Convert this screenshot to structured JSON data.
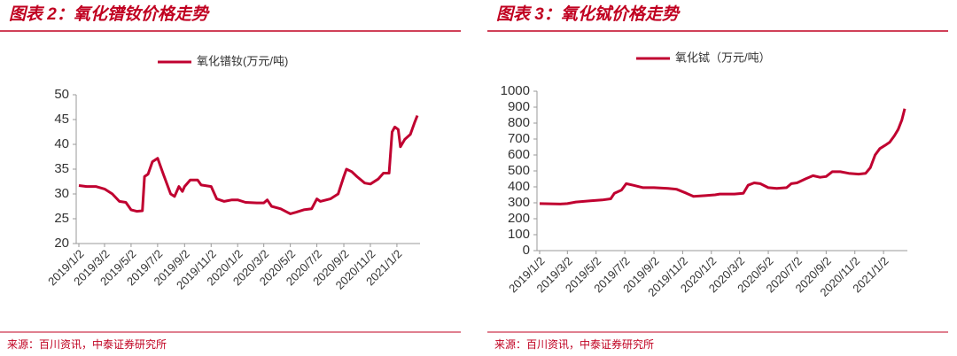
{
  "chart_data": [
    {
      "type": "line",
      "title": "图表 2：氧化镨钕价格走势",
      "source": "来源：百川资讯，中泰证券研究所",
      "legend": "top",
      "x": [
        "2019/1/2",
        "2019/1/20",
        "2019/2/10",
        "2019/3/2",
        "2019/3/20",
        "2019/4/5",
        "2019/4/20",
        "2019/5/2",
        "2019/5/15",
        "2019/5/28",
        "2019/6/2",
        "2019/6/10",
        "2019/6/20",
        "2019/7/2",
        "2019/7/15",
        "2019/8/1",
        "2019/8/10",
        "2019/8/20",
        "2019/8/28",
        "2019/9/2",
        "2019/9/15",
        "2019/10/2",
        "2019/10/10",
        "2019/11/2",
        "2019/11/15",
        "2019/12/2",
        "2019/12/20",
        "2020/1/2",
        "2020/1/20",
        "2020/2/15",
        "2020/3/2",
        "2020/3/10",
        "2020/3/20",
        "2020/4/10",
        "2020/4/25",
        "2020/5/2",
        "2020/5/15",
        "2020/6/2",
        "2020/6/20",
        "2020/7/2",
        "2020/7/10",
        "2020/8/2",
        "2020/8/20",
        "2020/9/2",
        "2020/9/8",
        "2020/9/20",
        "2020/10/2",
        "2020/10/20",
        "2020/11/2",
        "2020/11/20",
        "2020/12/2",
        "2020/12/15",
        "2020/12/22",
        "2020/12/28",
        "2021/1/5",
        "2021/1/10",
        "2021/1/20",
        "2021/2/2",
        "2021/2/12",
        "2021/2/18"
      ],
      "series": [
        {
          "name": "氧化镨钕(万元/吨)",
          "color": "#c00030",
          "values": [
            31.7,
            31.5,
            31.5,
            31.0,
            30,
            28.5,
            28.3,
            26.8,
            26.5,
            26.6,
            33.5,
            34,
            36.5,
            37.2,
            34,
            30,
            29.5,
            31.5,
            30.5,
            31.5,
            32.8,
            32.8,
            31.8,
            31.5,
            29,
            28.5,
            28.8,
            28.8,
            28.3,
            28.2,
            28.2,
            28.8,
            27.5,
            27,
            26.3,
            26,
            26.3,
            26.8,
            27,
            29,
            28.5,
            29,
            30,
            33.5,
            35,
            34.5,
            33.5,
            32.2,
            32,
            33,
            34.2,
            34.2,
            42.5,
            43.5,
            43,
            39.5,
            41,
            42,
            44.5,
            45.8
          ]
        }
      ],
      "ylim": [
        20,
        50
      ],
      "yticks": [
        20,
        25,
        30,
        35,
        40,
        45,
        50
      ],
      "xticks": [
        "2019/1/2",
        "2019/3/2",
        "2019/5/2",
        "2019/7/2",
        "2019/9/2",
        "2019/11/2",
        "2020/1/2",
        "2020/3/2",
        "2020/5/2",
        "2020/7/2",
        "2020/9/2",
        "2020/11/2",
        "2021/1/2"
      ]
    },
    {
      "type": "line",
      "title": "图表 3：氧化铽价格走势",
      "source": "来源：百川资讯，中泰证券研究所",
      "legend": "top",
      "x": [
        "2019/1/2",
        "2019/2/15",
        "2019/3/2",
        "2019/3/20",
        "2019/4/20",
        "2019/5/15",
        "2019/6/2",
        "2019/6/10",
        "2019/6/25",
        "2019/7/5",
        "2019/7/20",
        "2019/8/10",
        "2019/9/2",
        "2019/10/2",
        "2019/10/20",
        "2019/11/10",
        "2019/11/25",
        "2019/12/20",
        "2020/1/10",
        "2020/1/20",
        "2020/2/20",
        "2020/3/10",
        "2020/3/20",
        "2020/4/2",
        "2020/4/15",
        "2020/5/2",
        "2020/5/20",
        "2020/6/10",
        "2020/6/20",
        "2020/7/2",
        "2020/7/20",
        "2020/8/5",
        "2020/8/20",
        "2020/9/2",
        "2020/9/15",
        "2020/10/2",
        "2020/10/20",
        "2020/11/10",
        "2020/11/25",
        "2020/12/5",
        "2020/12/15",
        "2020/12/25",
        "2021/1/5",
        "2021/1/15",
        "2021/1/25",
        "2021/2/2",
        "2021/2/10",
        "2021/2/16"
      ],
      "series": [
        {
          "name": "氧化铽（万元/吨）",
          "color": "#c00030",
          "values": [
            295,
            292,
            295,
            305,
            312,
            318,
            325,
            360,
            380,
            420,
            410,
            395,
            395,
            390,
            385,
            360,
            340,
            345,
            350,
            355,
            355,
            360,
            410,
            425,
            420,
            395,
            390,
            395,
            420,
            425,
            450,
            470,
            460,
            465,
            495,
            495,
            485,
            480,
            485,
            520,
            600,
            640,
            660,
            680,
            720,
            760,
            820,
            890
          ]
        }
      ],
      "ylim": [
        0,
        1000
      ],
      "yticks": [
        0,
        100,
        200,
        300,
        400,
        500,
        600,
        700,
        800,
        900,
        1000
      ],
      "xticks": [
        "2019/1/2",
        "2019/3/2",
        "2019/5/2",
        "2019/7/2",
        "2019/9/2",
        "2019/11/2",
        "2020/1/2",
        "2020/3/2",
        "2020/5/2",
        "2020/7/2",
        "2020/9/2",
        "2020/11/2",
        "2021/1/2"
      ]
    }
  ]
}
